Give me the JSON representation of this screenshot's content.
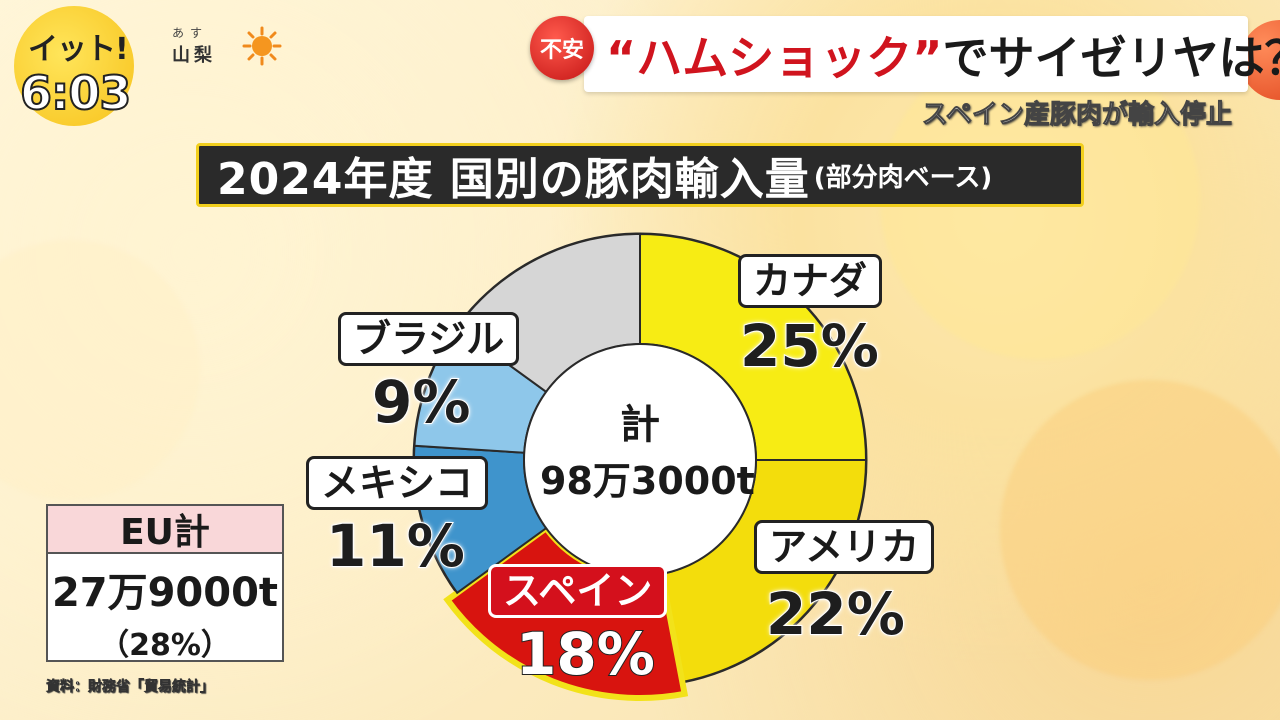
{
  "logo": {
    "title": "イット!",
    "time": "6:03"
  },
  "weather": {
    "day": "あす",
    "region": "山梨",
    "icon": "sun-icon"
  },
  "headline": {
    "badge": "不安",
    "quote": "“ハムショック”",
    "rest": "でサイゼリヤは？",
    "sub": "スペイン産豚肉が輸入停止"
  },
  "chart_title": {
    "main": "2024年度 国別の豚肉輸入量",
    "sub": "(部分肉ベース)"
  },
  "chart_data": {
    "type": "pie",
    "title": "2024年度 国別の豚肉輸入量(部分肉ベース)",
    "center_label": "計",
    "center_value": "98万3000t",
    "slices": [
      {
        "name": "カナダ",
        "pct_label": "25%",
        "value": 25,
        "color": "#f7ec14"
      },
      {
        "name": "アメリカ",
        "pct_label": "22%",
        "value": 22,
        "color": "#f3dd0c"
      },
      {
        "name": "スペイン",
        "pct_label": "18%",
        "value": 18,
        "color": "#d8140f",
        "highlight": true
      },
      {
        "name": "メキシコ",
        "pct_label": "11%",
        "value": 11,
        "color": "#3f94cc"
      },
      {
        "name": "ブラジル",
        "pct_label": "9%",
        "value": 9,
        "color": "#8ec7ea"
      },
      {
        "name": "",
        "pct_label": "",
        "value": 15,
        "color": "#d6d6d6"
      }
    ]
  },
  "eu": {
    "header": "EU計",
    "value": "27万9000t",
    "pct": "（28%）"
  },
  "source": "資料：財務省「貿易統計」"
}
